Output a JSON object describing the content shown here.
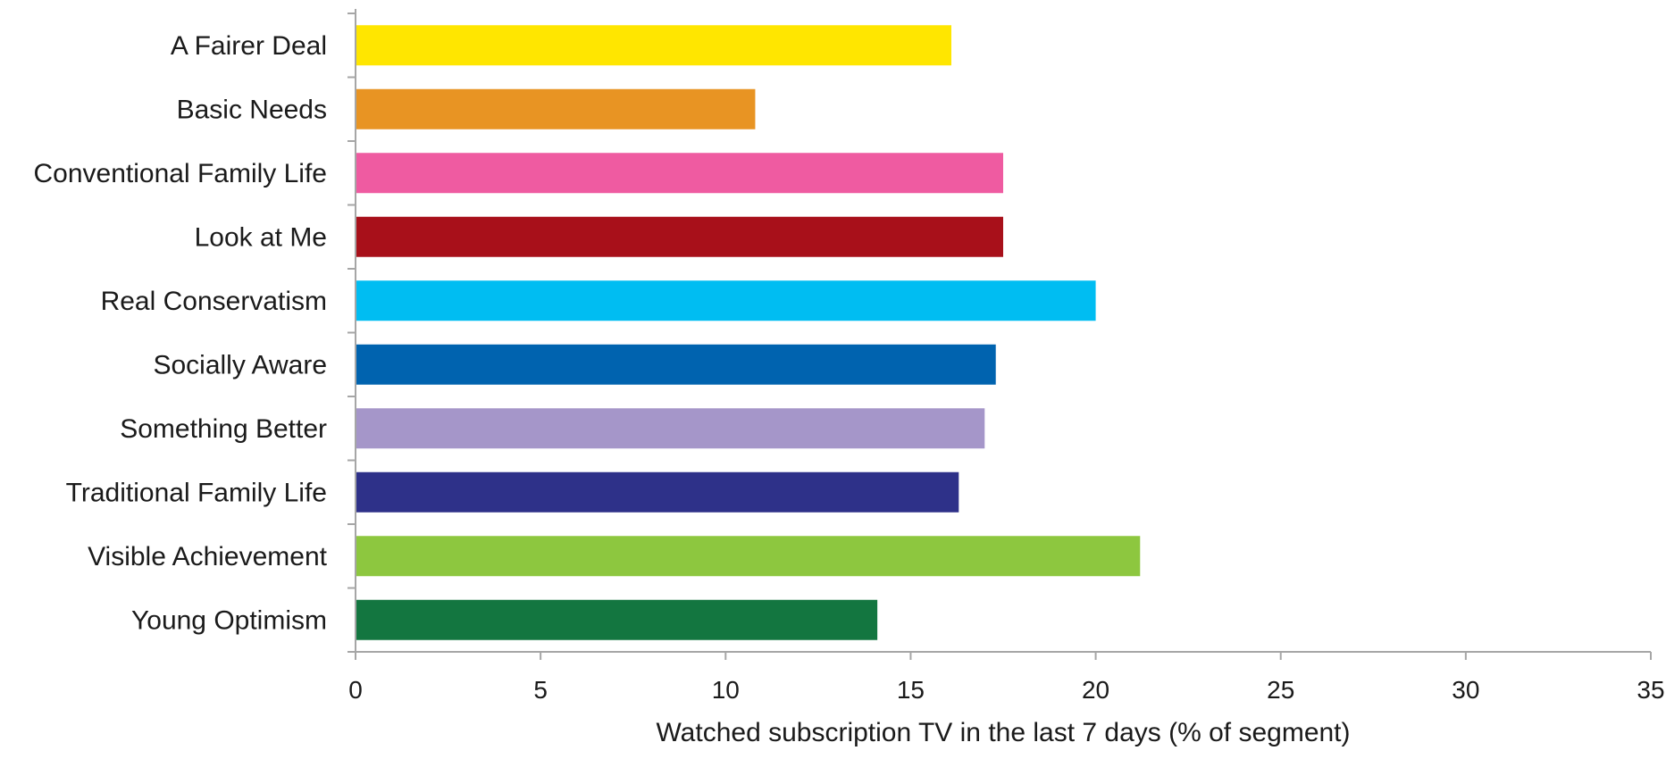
{
  "chart_data": {
    "type": "bar",
    "orientation": "horizontal",
    "title": "",
    "xlabel": "Watched subscription TV in the last 7 days (% of segment)",
    "ylabel": "",
    "xlim": [
      0,
      35
    ],
    "xticks": [
      "0",
      "5",
      "10",
      "15",
      "20",
      "25",
      "30",
      "35"
    ],
    "grid": false,
    "legend": "none",
    "categories": [
      "A Fairer Deal",
      "Basic Needs",
      "Conventional Family Life",
      "Look at Me",
      "Real Conservatism",
      "Socially Aware",
      "Something Better",
      "Traditional Family Life",
      "Visible Achievement",
      "Young Optimism"
    ],
    "values": [
      16.1,
      10.8,
      17.5,
      17.5,
      20.0,
      17.3,
      17.0,
      16.3,
      21.2,
      14.1
    ],
    "colors": [
      "#ffe600",
      "#e89423",
      "#ef5ba1",
      "#a8101a",
      "#00bdf2",
      "#0063af",
      "#a596c9",
      "#2e3189",
      "#8dc73f",
      "#137640"
    ]
  }
}
